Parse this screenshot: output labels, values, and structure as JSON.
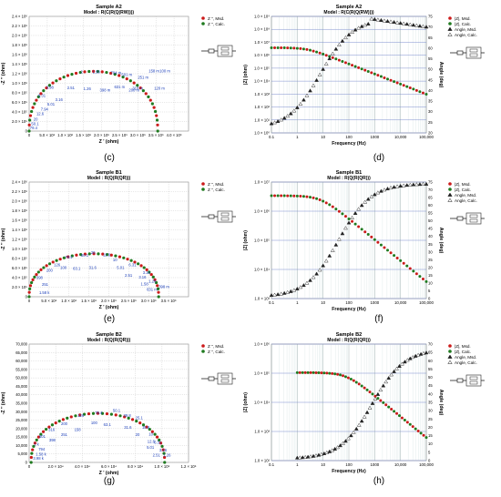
{
  "figure": {
    "panel_labels": [
      "(c)",
      "(d)",
      "(e)",
      "(f)",
      "(g)",
      "(h)"
    ]
  },
  "chart_data": [
    {
      "id": "c",
      "type": "scatter",
      "title": "Sample A2",
      "subtitle": "Model : R(C(R(Q(RW))))",
      "xlabel": "Z ' (ohm)",
      "ylabel": "-Z '' (ohm)",
      "xlim": [
        0,
        4400000
      ],
      "ylim": [
        0,
        2400000
      ],
      "xticks": [
        0,
        500000,
        1000000,
        1500000,
        2000000,
        2500000,
        3000000,
        3500000,
        4000000
      ],
      "xtick_labels": [
        "0",
        "5.0 × 10⁵",
        "1.0 × 10⁶",
        "1.5 × 10⁶",
        "2.0 × 10⁶",
        "2.5 × 10⁶",
        "3.0 × 10⁶",
        "3.5 × 10⁶",
        "4.0 × 10⁶"
      ],
      "yticks": [
        0,
        200000,
        400000,
        600000,
        800000,
        1000000,
        1200000,
        1400000,
        1600000,
        1800000,
        2000000,
        2200000,
        2400000
      ],
      "ytick_labels": [
        "0",
        "2.0 × 10⁵",
        "4.0 × 10⁵",
        "6.0 × 10⁵",
        "8.0 × 10⁵",
        "1.0 × 10⁶",
        "1.2 × 10⁶",
        "1.4 × 10⁶",
        "1.6 × 10⁶",
        "1.8 × 10⁶",
        "2.0 × 10⁶",
        "2.2 × 10⁶",
        "2.4 × 10⁶"
      ],
      "legend": [
        "Z '', Msd.",
        "Z '', Calc."
      ],
      "legend_position": "right",
      "shape": "arc",
      "arc": {
        "x0": 0,
        "x1": 3550000,
        "peak_y": 1250000
      },
      "annotations": [
        {
          "text": "79.4",
          "x": 20000,
          "y": 40000
        },
        {
          "text": "50.1",
          "x": 60000,
          "y": 120000
        },
        {
          "text": "20",
          "x": 120000,
          "y": 220000
        },
        {
          "text": "12.6",
          "x": 200000,
          "y": 330000
        },
        {
          "text": "7.94",
          "x": 320000,
          "y": 430000
        },
        {
          "text": "5.01",
          "x": 500000,
          "y": 530000
        },
        {
          "text": "3.16",
          "x": 720000,
          "y": 630000
        },
        {
          "text": "2.51",
          "x": 1050000,
          "y": 880000
        },
        {
          "text": "1.26",
          "x": 1500000,
          "y": 860000
        },
        {
          "text": "398 m",
          "x": 1950000,
          "y": 830000
        },
        {
          "text": "200 m",
          "x": 2750000,
          "y": 830000
        },
        {
          "text": "120 m",
          "x": 3450000,
          "y": 870000
        },
        {
          "text": "3.98",
          "x": 470000,
          "y": 890000
        },
        {
          "text": "6.31",
          "x": 250000,
          "y": 710000
        },
        {
          "text": "2",
          "x": 1420000,
          "y": 1210000
        },
        {
          "text": "1.58",
          "x": 1750000,
          "y": 1210000
        },
        {
          "text": "794 m",
          "x": 2250000,
          "y": 1190000
        },
        {
          "text": "501 m",
          "x": 2550000,
          "y": 1150000
        },
        {
          "text": "251 m",
          "x": 3000000,
          "y": 1100000
        },
        {
          "text": "158 m",
          "x": 3300000,
          "y": 1230000
        },
        {
          "text": "631 m",
          "x": 2350000,
          "y": 900000
        },
        {
          "text": "316 m",
          "x": 2850000,
          "y": 870000
        },
        {
          "text": "100 m",
          "x": 3600000,
          "y": 1230000
        }
      ]
    },
    {
      "id": "d",
      "type": "line",
      "title": "Sample A2",
      "subtitle": "Model : R(C(R(Q(RW))))",
      "xlabel": "Frequency (Hz)",
      "ylabel": "|Z| (ohm)",
      "ylabel_right": "Angle (deg)",
      "xscale": "log",
      "yscale": "log",
      "xlim": [
        0.1,
        100000
      ],
      "ylim": [
        1,
        1000000000
      ],
      "ylim_right": [
        20,
        75
      ],
      "xtick_labels": [
        "0.1",
        "1",
        "10",
        "100",
        "1000",
        "10,000",
        "100,000"
      ],
      "ytick_labels": [
        "1.0 × 10⁰",
        "1.0 × 10¹",
        "1.0 × 10²",
        "1.0 × 10³",
        "1.0 × 10⁴",
        "1.0 × 10⁵",
        "1.0 × 10⁶",
        "1.0 × 10⁷",
        "1.0 × 10⁸",
        "1.0 × 10⁹"
      ],
      "ytick_right": [
        20,
        25,
        30,
        35,
        40,
        45,
        50,
        55,
        60,
        65,
        70,
        75
      ],
      "legend": [
        "|Z|, Msd.",
        "|Z|, Calc.",
        "Angle, Msd.",
        "Angle, Calc."
      ],
      "legend_position": "top-right",
      "modulus": {
        "low": 3800000,
        "f_corner": 2.5,
        "slope": 0.78
      },
      "angle": {
        "start": 22,
        "peak": 74,
        "f_peak": 600,
        "end": 70,
        "f_rise": 8
      }
    },
    {
      "id": "e",
      "type": "scatter",
      "title": "Sample B1",
      "subtitle": "Model : R(Q(R(QR)))",
      "xlabel": "Z ' (ohm)",
      "ylabel": "-Z '' (ohm)",
      "xlim": [
        0,
        4000000
      ],
      "ylim": [
        0,
        2400000
      ],
      "xticks": [
        0,
        500000,
        1000000,
        1500000,
        2000000,
        2500000,
        3000000,
        3500000
      ],
      "xtick_labels": [
        "0",
        "5.0 × 10⁵",
        "1.0 × 10⁶",
        "1.5 × 10⁶",
        "2.0 × 10⁶",
        "2.5 × 10⁶",
        "3.0 × 10⁶",
        "3.5 × 10⁶"
      ],
      "yticks": [
        0,
        200000,
        400000,
        600000,
        800000,
        1000000,
        1200000,
        1400000,
        1600000,
        1800000,
        2000000,
        2200000,
        2400000
      ],
      "ytick_labels": [
        "0",
        "2.0 × 10⁵",
        "4.0 × 10⁵",
        "6.0 × 10⁵",
        "8.0 × 10⁵",
        "1.0 × 10⁶",
        "1.2 × 10⁶",
        "1.4 × 10⁶",
        "1.6 × 10⁶",
        "1.8 × 10⁶",
        "2.0 × 10⁶",
        "2.2 × 10⁶",
        "2.4 × 10⁶"
      ],
      "legend": [
        "Z '', Msd.",
        "Z '', Calc."
      ],
      "legend_position": "right",
      "shape": "arc",
      "arc": {
        "x0": 0,
        "x1": 3250000,
        "peak_y": 900000
      },
      "annotations": [
        {
          "text": "1.58 k",
          "x": 250000,
          "y": 60000
        },
        {
          "text": "251",
          "x": 320000,
          "y": 230000
        },
        {
          "text": "398",
          "x": 180000,
          "y": 370000
        },
        {
          "text": "200",
          "x": 430000,
          "y": 520000
        },
        {
          "text": "126",
          "x": 620000,
          "y": 640000
        },
        {
          "text": "79.4",
          "x": 900000,
          "y": 800000
        },
        {
          "text": "100",
          "x": 780000,
          "y": 580000
        },
        {
          "text": "63.1",
          "x": 1100000,
          "y": 560000
        },
        {
          "text": "31.6",
          "x": 1500000,
          "y": 580000
        },
        {
          "text": "50.1",
          "x": 1300000,
          "y": 840000
        },
        {
          "text": "20",
          "x": 1550000,
          "y": 900000
        },
        {
          "text": "12.6",
          "x": 1850000,
          "y": 850000
        },
        {
          "text": "10",
          "x": 2100000,
          "y": 740000
        },
        {
          "text": "5.01",
          "x": 2200000,
          "y": 580000
        },
        {
          "text": "6.31",
          "x": 2500000,
          "y": 640000
        },
        {
          "text": "2.51",
          "x": 2400000,
          "y": 420000
        },
        {
          "text": "3.16",
          "x": 2750000,
          "y": 380000
        },
        {
          "text": "3.16",
          "x": 2850000,
          "y": 480000
        },
        {
          "text": "1.58",
          "x": 2800000,
          "y": 240000
        },
        {
          "text": "1.26",
          "x": 3000000,
          "y": 300000
        },
        {
          "text": "631 m",
          "x": 2950000,
          "y": 120000
        },
        {
          "text": "398 m",
          "x": 3250000,
          "y": 180000
        }
      ]
    },
    {
      "id": "f",
      "type": "line",
      "title": "Sample B1",
      "subtitle": "Model : R(Q(R(QR)))",
      "xlabel": "Frequency (Hz)",
      "ylabel": "|Z| (ohm)",
      "ylabel_right": "Angle (deg)",
      "xscale": "log",
      "yscale": "log",
      "xlim": [
        0.1,
        100000
      ],
      "ylim": [
        1000,
        10000000
      ],
      "ylim_right": [
        0,
        75
      ],
      "xtick_labels": [
        "0.1",
        "1",
        "10",
        "100",
        "1000",
        "10,000",
        "100,000"
      ],
      "ytick_labels": [
        "1.0 × 10³",
        "1.0 × 10⁴",
        "1.0 × 10⁵",
        "1.0 × 10⁶",
        "1.0 × 10⁷"
      ],
      "ytick_right": [
        0,
        5,
        10,
        15,
        20,
        25,
        30,
        35,
        40,
        45,
        50,
        55,
        60,
        65,
        70,
        75
      ],
      "legend": [
        "|Z|, Msd.",
        "|Z|, Calc.",
        "Angle, Msd.",
        "Angle, Calc."
      ],
      "legend_position": "top-right",
      "modulus": {
        "low": 3400000,
        "f_corner": 8,
        "slope": 0.72
      },
      "angle": {
        "start": 1,
        "peak": 74,
        "f_peak": 100000,
        "end": 74,
        "f_rise": 40
      }
    },
    {
      "id": "g",
      "type": "scatter",
      "title": "Sample B2",
      "subtitle": "Model : R(Q(R(QR)))",
      "xlabel": "Z ' (ohm)",
      "ylabel": "-Z '' (ohm)",
      "xlim": [
        0,
        120000
      ],
      "ylim": [
        0,
        70000
      ],
      "xticks": [
        0,
        20000,
        40000,
        60000,
        80000,
        100000,
        120000
      ],
      "xtick_labels": [
        "0",
        "2.0 × 10⁴",
        "4.0 × 10⁴",
        "6.0 × 10⁴",
        "8.0 × 10⁴",
        "1.0 × 10⁵",
        "1.2 × 10⁵"
      ],
      "yticks": [
        0,
        5000,
        10000,
        15000,
        20000,
        25000,
        30000,
        35000,
        40000,
        45000,
        50000,
        55000,
        60000,
        65000,
        70000
      ],
      "ytick_labels": [
        "0",
        "5,000",
        "10,000",
        "15,000",
        "20,000",
        "25,000",
        "30,000",
        "35,000",
        "40,000",
        "45,000",
        "50,000",
        "55,000",
        "60,000",
        "65,000",
        "70,000"
      ],
      "legend": [
        "Z '', Msd.",
        "Z '', Calc."
      ],
      "legend_position": "right",
      "shape": "arc",
      "arc": {
        "x0": 1500,
        "x1": 102000,
        "peak_y": 29000
      },
      "annotations": [
        {
          "text": "3.98 k",
          "x": 3000,
          "y": 1500
        },
        {
          "text": "1.58 k",
          "x": 5000,
          "y": 4000
        },
        {
          "text": "794",
          "x": 7000,
          "y": 7000
        },
        {
          "text": "1 k",
          "x": 3500,
          "y": 10000
        },
        {
          "text": "501",
          "x": 7500,
          "y": 14500
        },
        {
          "text": "398",
          "x": 15000,
          "y": 12500
        },
        {
          "text": "316",
          "x": 14500,
          "y": 18500
        },
        {
          "text": "251",
          "x": 24000,
          "y": 15500
        },
        {
          "text": "200",
          "x": 24000,
          "y": 22000
        },
        {
          "text": "158",
          "x": 34000,
          "y": 18500
        },
        {
          "text": "126",
          "x": 36500,
          "y": 27000
        },
        {
          "text": "100",
          "x": 46500,
          "y": 22500
        },
        {
          "text": "79.4",
          "x": 49500,
          "y": 28500
        },
        {
          "text": "63.1",
          "x": 56000,
          "y": 21500
        },
        {
          "text": "50.1",
          "x": 63000,
          "y": 30000
        },
        {
          "text": "39.8",
          "x": 71000,
          "y": 27000
        },
        {
          "text": "31.6",
          "x": 71500,
          "y": 20000
        },
        {
          "text": "25.1",
          "x": 80000,
          "y": 25500
        },
        {
          "text": "20",
          "x": 80000,
          "y": 15500
        },
        {
          "text": "15.8",
          "x": 85000,
          "y": 20000
        },
        {
          "text": "12.6",
          "x": 89000,
          "y": 11500
        },
        {
          "text": "10",
          "x": 90000,
          "y": 16000
        },
        {
          "text": "5.01",
          "x": 88500,
          "y": 8000
        },
        {
          "text": "6.31",
          "x": 94000,
          "y": 11000
        },
        {
          "text": "3.16",
          "x": 98000,
          "y": 6500
        },
        {
          "text": "2.51",
          "x": 93000,
          "y": 3500
        },
        {
          "text": "1.26",
          "x": 101000,
          "y": 3500
        }
      ]
    },
    {
      "id": "h",
      "type": "line",
      "title": "Sample B2",
      "subtitle": "Model : R(Q(R(QR)))",
      "xlabel": "Frequency (Hz)",
      "ylabel": "|Z| (ohm)",
      "ylabel_right": "Angle (deg)",
      "xscale": "log",
      "yscale": "log",
      "xlim": [
        0.1,
        100000
      ],
      "ylim": [
        100,
        1000000
      ],
      "ylim_right": [
        0,
        70
      ],
      "xtick_labels": [
        "0.1",
        "1",
        "10",
        "100",
        "1000",
        "10,000",
        "100,000"
      ],
      "ytick_labels": [
        "1.0 × 10²",
        "1.0 × 10³",
        "1.0 × 10⁴",
        "1.0 × 10⁵",
        "1.0 × 10⁶"
      ],
      "ytick_right": [
        0,
        5,
        10,
        15,
        20,
        25,
        30,
        35,
        40,
        45,
        50,
        55,
        60,
        65,
        70
      ],
      "legend": [
        "|Z|, Msd.",
        "|Z|, Calc.",
        "Angle, Msd.",
        "Angle, Calc."
      ],
      "legend_position": "top-right",
      "modulus": {
        "low": 105000,
        "f_corner": 80,
        "slope": 0.72,
        "f_start": 1
      },
      "angle": {
        "start": 1,
        "peak": 67,
        "f_peak": 100000,
        "end": 67,
        "f_rise": 800,
        "f_start": 1
      }
    }
  ]
}
